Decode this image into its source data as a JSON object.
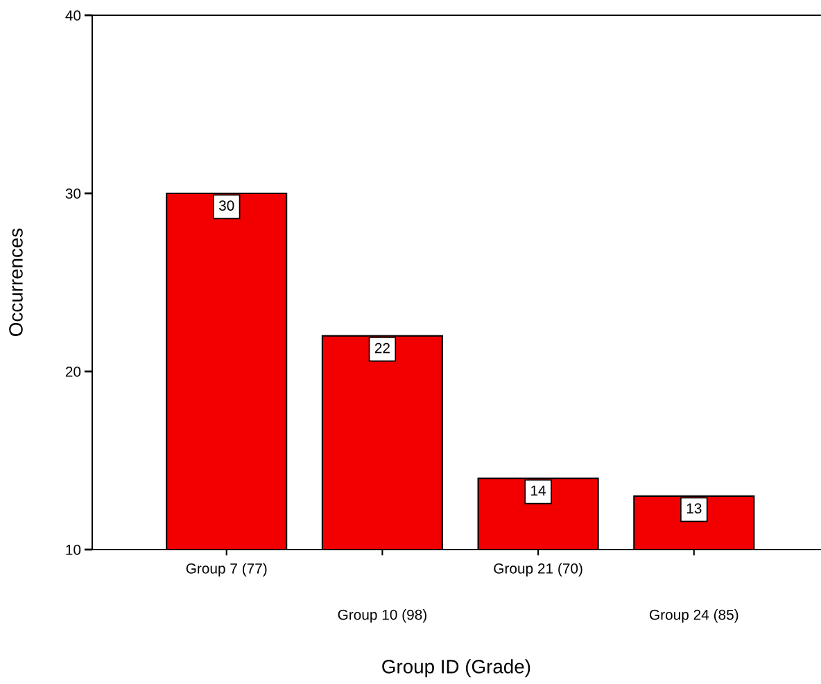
{
  "chart_data": {
    "type": "bar",
    "xlabel": "Group ID (Grade)",
    "ylabel": "Occurrences",
    "categories": [
      "Group 7 (77)",
      "Group 10 (98)",
      "Group 21 (70)",
      "Group 24 (85)"
    ],
    "values": [
      30,
      22,
      14,
      13
    ],
    "color": "#f20000",
    "ylim": [
      10,
      40
    ],
    "yticks": [
      10,
      20,
      30,
      40
    ],
    "data_labels": true,
    "grid": false,
    "legend": false
  }
}
